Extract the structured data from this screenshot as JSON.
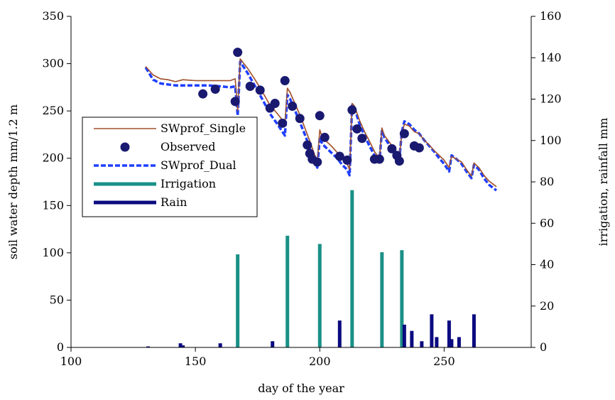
{
  "chart_data": {
    "type": "line",
    "title": "",
    "xlabel": "day of the year",
    "ylabel_left": "soil water depth   mm/1.2 m",
    "ylabel_right": "irrigation, rainfall  mm",
    "xlim": [
      100,
      285
    ],
    "ylim_left": [
      0,
      350
    ],
    "ylim_right": [
      0,
      160
    ],
    "xticks": [
      100,
      150,
      200,
      250
    ],
    "yticks_left": [
      0,
      50,
      100,
      150,
      200,
      250,
      300,
      350
    ],
    "yticks_right": [
      0,
      20,
      40,
      60,
      80,
      100,
      120,
      140,
      160
    ],
    "grid": false,
    "legend_position": "left-middle",
    "colors": {
      "single": "#a0522d",
      "observed": "#191970",
      "dual": "#1f3fff",
      "irrigation": "#1a9087",
      "rain": "#0a0a80"
    },
    "legend": [
      {
        "key": "single",
        "label": "SWprof_Single",
        "style": "line"
      },
      {
        "key": "observed",
        "label": "Observed",
        "style": "marker"
      },
      {
        "key": "dual",
        "label": "SWprof_Dual",
        "style": "dashed"
      },
      {
        "key": "irrigation",
        "label": "Irrigation",
        "style": "thick"
      },
      {
        "key": "rain",
        "label": "Rain",
        "style": "thick"
      }
    ],
    "series": [
      {
        "key": "single",
        "name": "SWprof_Single",
        "axis": "left",
        "x": [
          130,
          133,
          136,
          139,
          142,
          145,
          150,
          155,
          160,
          164,
          166,
          167,
          168,
          171,
          174,
          177,
          180,
          183,
          186,
          187,
          188,
          190,
          192,
          194,
          196,
          198,
          199,
          200,
          201,
          203,
          205,
          207,
          209,
          211,
          212,
          213,
          214,
          216,
          218,
          220,
          222,
          224,
          225,
          226,
          228,
          230,
          232,
          233,
          234,
          236,
          238,
          240,
          242,
          244,
          246,
          248,
          250,
          252,
          253,
          255,
          257,
          259,
          261,
          262,
          264,
          266,
          268,
          271
        ],
        "y": [
          297,
          288,
          284,
          283,
          281,
          283,
          282,
          282,
          282,
          282,
          284,
          250,
          305,
          295,
          283,
          270,
          256,
          247,
          237,
          274,
          270,
          258,
          246,
          232,
          218,
          203,
          196,
          230,
          222,
          217,
          212,
          206,
          200,
          194,
          188,
          258,
          255,
          240,
          228,
          218,
          207,
          200,
          232,
          224,
          217,
          209,
          203,
          226,
          236,
          234,
          228,
          226,
          219,
          214,
          208,
          203,
          198,
          190,
          202,
          199,
          196,
          188,
          181,
          195,
          190,
          182,
          176,
          170
        ]
      },
      {
        "key": "dual",
        "name": "SWprof_Dual",
        "axis": "left",
        "x": [
          130,
          133,
          136,
          139,
          142,
          145,
          150,
          155,
          160,
          164,
          166,
          167,
          168,
          171,
          174,
          177,
          180,
          183,
          186,
          187,
          188,
          190,
          192,
          194,
          196,
          198,
          199,
          200,
          201,
          203,
          205,
          207,
          209,
          211,
          212,
          213,
          214,
          216,
          218,
          220,
          222,
          224,
          225,
          226,
          228,
          230,
          232,
          233,
          234,
          236,
          238,
          240,
          242,
          244,
          246,
          248,
          250,
          252,
          253,
          255,
          257,
          259,
          261,
          262,
          264,
          266,
          268,
          271
        ],
        "y": [
          296,
          283,
          279,
          278,
          277,
          277,
          277,
          277,
          276,
          275,
          276,
          245,
          302,
          290,
          276,
          262,
          247,
          236,
          224,
          267,
          263,
          251,
          238,
          225,
          211,
          198,
          190,
          222,
          215,
          210,
          205,
          200,
          193,
          188,
          182,
          256,
          253,
          236,
          224,
          213,
          203,
          197,
          229,
          222,
          214,
          206,
          200,
          228,
          239,
          236,
          230,
          226,
          219,
          213,
          207,
          200,
          194,
          186,
          203,
          199,
          194,
          186,
          179,
          193,
          188,
          179,
          172,
          166
        ]
      }
    ],
    "observed": {
      "key": "observed",
      "name": "Observed",
      "axis": "left",
      "x": [
        153,
        158,
        166,
        167,
        172,
        176,
        180,
        182,
        185,
        186,
        189,
        192,
        195,
        196,
        197,
        199,
        200,
        202,
        208,
        211,
        213,
        215,
        217,
        222,
        224,
        229,
        231,
        232,
        234,
        238,
        240
      ],
      "y": [
        268,
        273,
        260,
        312,
        276,
        272,
        253,
        258,
        237,
        282,
        255,
        242,
        214,
        205,
        199,
        196,
        245,
        222,
        202,
        198,
        251,
        231,
        221,
        199,
        199,
        210,
        203,
        197,
        226,
        213,
        211
      ]
    },
    "irrigation": {
      "key": "irrigation",
      "name": "Irrigation",
      "axis": "right",
      "x": [
        167,
        187,
        200,
        213,
        225,
        233
      ],
      "values": [
        45,
        54,
        50,
        76,
        46,
        47
      ]
    },
    "rain": {
      "key": "rain",
      "name": "Rain",
      "axis": "right",
      "x": [
        131,
        144,
        145,
        160,
        181,
        208,
        234,
        237,
        241,
        245,
        247,
        252,
        253,
        256,
        262
      ],
      "values": [
        0.5,
        2,
        1,
        2,
        3,
        13,
        11,
        8,
        3,
        16,
        5,
        13,
        4,
        5,
        16
      ]
    }
  }
}
